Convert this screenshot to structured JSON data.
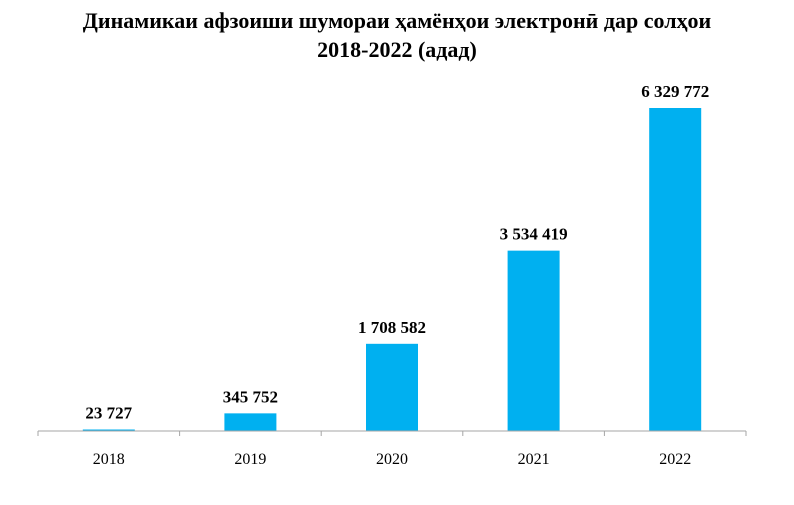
{
  "chart_data": {
    "type": "bar",
    "title_line1": "Динамикаи афзоиши шумораи ҳамёнҳои электронӣ дар солҳои",
    "title_line2": "2018-2022 (адад)",
    "categories": [
      "2018",
      "2019",
      "2020",
      "2021",
      "2022"
    ],
    "values": [
      23727,
      345752,
      1708582,
      3534419,
      6329772
    ],
    "data_labels": [
      "23 727",
      "345 752",
      "1 708 582",
      "3 534 419",
      "6 329 772"
    ],
    "xlabel": "",
    "ylabel": "",
    "ylim": [
      0,
      6329772
    ],
    "grid": false,
    "legend": "none",
    "bar_color": "#00B0F0",
    "axis_color": "#A6A6A6"
  }
}
